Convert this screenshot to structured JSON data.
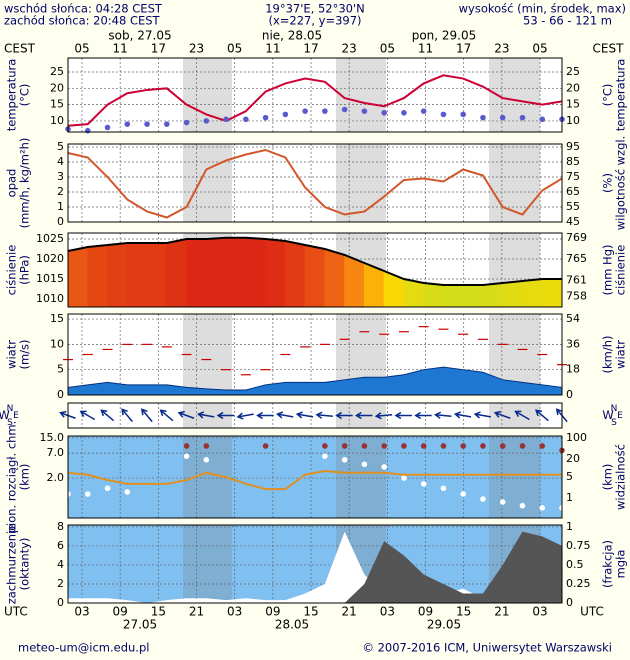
{
  "header": {
    "sunrise": "wschód słońca: 04:28 CEST",
    "sunset": "zachód słońca: 20:48 CEST",
    "coords": "19°37'E, 52°30'N",
    "grid": "(x=227, y=397)",
    "height_label": "wysokość (min, środek, max)",
    "height_values": "53 - 66 - 121 m"
  },
  "dates_top": [
    "sob, 27.05",
    "nie, 28.05",
    "pon, 29.05"
  ],
  "dates_bottom": [
    "27.05",
    "28.05",
    "29.05"
  ],
  "cest_label": "CEST",
  "utc_label": "UTC",
  "hours_cest": [
    "05",
    "11",
    "17",
    "23",
    "05",
    "11",
    "17",
    "23",
    "05",
    "11",
    "17",
    "23",
    "05"
  ],
  "hours_utc": [
    "03",
    "09",
    "15",
    "21",
    "03",
    "09",
    "15",
    "21",
    "03",
    "09",
    "15",
    "21",
    "03"
  ],
  "footer": {
    "email": "meteo-um@icm.edu.pl",
    "copyright": "© 2007-2016 ICM, Uniwersytet Warszawski"
  },
  "panels": [
    {
      "left_label": [
        "temperatura",
        "(°C)"
      ],
      "right_label": [
        "(°C)",
        "temperatura"
      ],
      "ylim": [
        6.6,
        29.3
      ],
      "yticks": [
        10,
        15,
        20,
        25
      ],
      "y2lim": [
        6.6,
        29.3
      ],
      "y2ticks": [
        10,
        15,
        20,
        25
      ],
      "background": "#ffffff",
      "series": [
        {
          "kind": "line",
          "color": "#cc0033",
          "values": [
            8.5,
            9,
            15,
            18.5,
            19.5,
            20,
            15,
            12,
            10,
            13,
            19,
            21.5,
            23,
            22,
            17,
            15.5,
            14.5,
            17,
            21.5,
            24,
            23,
            20.5,
            17,
            16,
            15,
            16
          ]
        },
        {
          "kind": "dots",
          "color": "#5a5acc",
          "values": [
            7.5,
            7,
            8,
            9,
            9,
            9,
            9.5,
            10,
            10.5,
            10.5,
            11,
            12,
            13,
            13,
            13.5,
            13,
            12.5,
            12.5,
            13,
            12,
            12,
            11,
            11,
            11,
            10.5,
            10.5
          ]
        }
      ]
    },
    {
      "left_label": [
        "opad",
        "(mm/h, kg/m²h)"
      ],
      "right_label": [
        "(%)",
        "wilgotność wzgl."
      ],
      "ylim": [
        0,
        5.2
      ],
      "yticks": [
        0,
        1,
        2,
        3,
        4,
        5
      ],
      "y2lim": [
        45,
        97
      ],
      "y2ticks": [
        45,
        55,
        65,
        75,
        85,
        95
      ],
      "background": "#ffffff",
      "series": [
        {
          "kind": "line",
          "axis": "y2",
          "color": "#d2572a",
          "values": [
            91,
            88,
            75,
            60,
            52,
            48,
            55,
            80,
            86,
            90,
            93,
            88,
            68,
            55,
            50,
            52,
            62,
            73,
            74,
            72,
            80,
            76,
            55,
            50,
            66,
            74
          ]
        }
      ]
    },
    {
      "left_label": [
        "ciśnienie",
        "(hPa)"
      ],
      "right_label": [
        "(mm Hg)",
        "ciśnienie"
      ],
      "ylim": [
        1008,
        1026.5
      ],
      "yticks": [
        1010,
        1015,
        1020,
        1025
      ],
      "y2lim": [
        756.05,
        769.92
      ],
      "y2ticks": [
        758,
        761,
        765,
        769
      ],
      "background": "#ffffff",
      "series": [
        {
          "kind": "pressure_area",
          "color": "#000000",
          "values": [
            1022,
            1023,
            1023.5,
            1024,
            1024,
            1024,
            1025,
            1025,
            1025.3,
            1025.3,
            1025,
            1024.5,
            1023.5,
            1022.5,
            1021,
            1019,
            1017,
            1015,
            1014,
            1013.5,
            1013.5,
            1013.5,
            1014,
            1014.5,
            1015,
            1015
          ]
        }
      ]
    },
    {
      "left_label": [
        "wiatr",
        "(m/s)"
      ],
      "right_label": [
        "(km/h)",
        "wiatr"
      ],
      "ylim": [
        0,
        16
      ],
      "yticks": [
        0,
        5,
        10,
        15
      ],
      "y2lim": [
        0,
        57.6
      ],
      "y2ticks": [
        0,
        18,
        36,
        54
      ],
      "background": "#ffffff",
      "series": [
        {
          "kind": "area",
          "color": "#1e78d2",
          "values": [
            1.5,
            2,
            2.5,
            2,
            2,
            2,
            1.5,
            1.2,
            1,
            1,
            2,
            2.5,
            2.5,
            2.5,
            3,
            3.5,
            3.5,
            4,
            5,
            5.5,
            5,
            4.5,
            3,
            2.5,
            2,
            1.5
          ]
        },
        {
          "kind": "dashes",
          "color": "#cc0000",
          "values": [
            7,
            8,
            9,
            10,
            10,
            9.5,
            8,
            7,
            5,
            4,
            5,
            8,
            9.5,
            10,
            11,
            12.5,
            12,
            12.5,
            13.5,
            13,
            12,
            11,
            10,
            9,
            8,
            6
          ]
        }
      ]
    },
    {
      "compass": {
        "w": "W",
        "s": "S",
        "n": "N",
        "e": "E"
      },
      "background": "#ffffff",
      "series": [
        {
          "kind": "arrows",
          "color": "#0a2a8c",
          "values": [
            200,
            210,
            220,
            230,
            230,
            220,
            200,
            190,
            180,
            170,
            180,
            190,
            190,
            185,
            180,
            180,
            175,
            180,
            180,
            185,
            190,
            190,
            200,
            210,
            220,
            230
          ]
        }
      ]
    },
    {
      "left_label": [
        "pion. rozciągł. chm.",
        "(km)"
      ],
      "right_label": [
        "(km)",
        "widzialność"
      ],
      "log": true,
      "ylim": [
        0.27,
        16.5
      ],
      "yticks": [
        {
          "value": 2,
          "label": "2.0"
        },
        {
          "value": 7,
          "label": "7.0"
        },
        {
          "value": 15,
          "label": "15.0"
        }
      ],
      "y2lim": [
        0.22,
        116
      ],
      "y2ticks": [
        1,
        5,
        20,
        100
      ],
      "background": "#80c0f0",
      "series": [
        {
          "kind": "dots",
          "color": "#993333",
          "values": [
            null,
            null,
            null,
            null,
            null,
            null,
            10,
            10,
            null,
            null,
            10,
            null,
            null,
            10,
            10,
            10,
            10,
            10,
            10,
            10,
            10,
            10,
            10,
            10,
            10,
            8
          ]
        },
        {
          "kind": "dots",
          "color": "#ffffff",
          "values": [
            0.9,
            0.9,
            1.2,
            1,
            null,
            null,
            6,
            5,
            null,
            null,
            null,
            null,
            null,
            6,
            5,
            4,
            3.5,
            2,
            1.5,
            1.2,
            0.9,
            0.7,
            0.6,
            0.5,
            0.45,
            0.45
          ]
        },
        {
          "kind": "line",
          "axis": "y2",
          "color": "#e09020",
          "values": [
            7,
            6,
            4,
            3,
            3,
            3,
            4,
            7,
            5,
            3,
            2,
            2,
            6,
            8,
            7,
            7,
            7,
            6,
            6,
            6,
            6,
            6,
            6,
            6,
            6,
            6
          ]
        }
      ]
    },
    {
      "left_label": [
        "zachmurzenie",
        "(oktanty)"
      ],
      "right_label": [
        "(frakcja)",
        "mgła"
      ],
      "ylim": [
        0,
        8.2
      ],
      "yticks": [
        0,
        2,
        4,
        6,
        8
      ],
      "y2lim": [
        0,
        1.025
      ],
      "y2ticks": [
        0,
        0.25,
        0.5,
        0.75,
        1
      ],
      "background": "#80c0f0",
      "series": [
        {
          "kind": "area",
          "color": "#ffffff",
          "values": [
            0.5,
            0.5,
            0.5,
            0.3,
            0,
            0.3,
            0.5,
            0.5,
            0.3,
            0.5,
            0.3,
            0.3,
            1,
            2,
            7.5,
            3,
            1,
            2.5,
            2,
            1,
            1.5,
            0.5,
            0.3,
            0.5,
            1,
            0.5
          ]
        },
        {
          "kind": "area",
          "color": "#555555",
          "values": [
            0,
            0,
            0,
            0,
            0,
            0,
            0,
            0,
            0,
            0,
            0,
            0,
            0,
            0,
            0,
            2,
            6.5,
            5,
            3,
            2,
            1,
            1,
            4,
            7.5,
            7,
            6
          ]
        }
      ]
    }
  ]
}
